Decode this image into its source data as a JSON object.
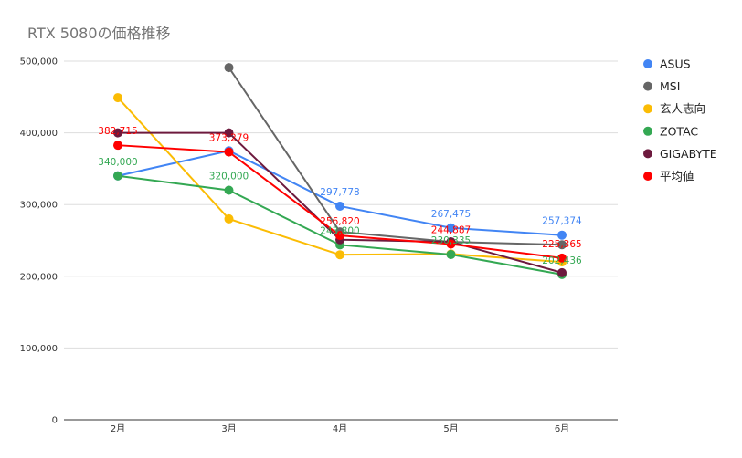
{
  "chart_data": {
    "type": "line",
    "title": "RTX 5080の価格推移",
    "xlabel": "",
    "ylabel": "",
    "categories": [
      "2月",
      "3月",
      "4月",
      "5月",
      "6月"
    ],
    "ylim": [
      0,
      500000
    ],
    "yticks": [
      0,
      100000,
      200000,
      300000,
      400000,
      500000
    ],
    "ytick_labels": [
      "0",
      "100,000",
      "200,000",
      "300,000",
      "400,000",
      "500,000"
    ],
    "grid": true,
    "legend_position": "right",
    "series": [
      {
        "name": "ASUS",
        "color": "#4285f4",
        "values": [
          340000,
          375000,
          297778,
          267475,
          257374
        ],
        "labels": [
          null,
          null,
          "297,778",
          "267,475",
          "257,374"
        ]
      },
      {
        "name": "MSI",
        "color": "#666666",
        "values": [
          null,
          491000,
          262000,
          248000,
          244000
        ],
        "labels": [
          null,
          null,
          null,
          null,
          null
        ]
      },
      {
        "name": "玄人志向",
        "color": "#fbbc04",
        "values": [
          449000,
          280000,
          230000,
          231000,
          220000
        ],
        "labels": [
          null,
          null,
          null,
          null,
          null
        ]
      },
      {
        "name": "ZOTAC",
        "color": "#34a853",
        "values": [
          340000,
          320000,
          243800,
          230335,
          202436
        ],
        "labels": [
          "340,000",
          "320,000",
          "243,800",
          "230,335",
          "202,436"
        ]
      },
      {
        "name": "GIGABYTE",
        "color": "#6d1a3e",
        "values": [
          400000,
          400000,
          251000,
          248000,
          205000
        ],
        "labels": [
          null,
          null,
          null,
          null,
          null
        ]
      },
      {
        "name": "平均値",
        "color": "#ff0000",
        "values": [
          382715,
          373279,
          256820,
          244887,
          225365
        ],
        "labels": [
          "382,715",
          "373,279",
          "256,820",
          "244,887",
          "225,365"
        ]
      }
    ]
  }
}
